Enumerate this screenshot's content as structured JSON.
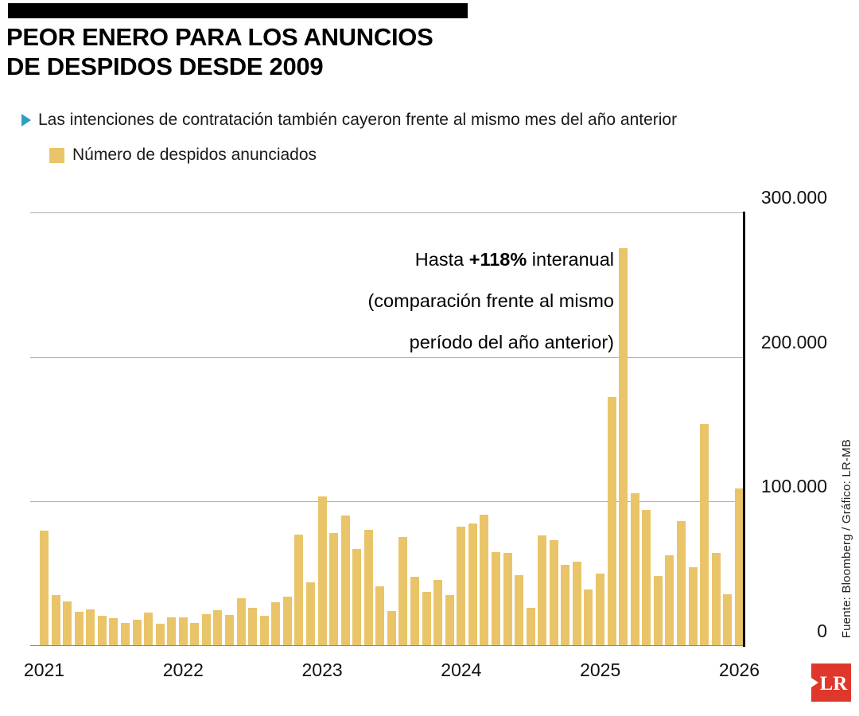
{
  "header": {
    "title_line1": "PEOR ENERO PARA LOS ANUNCIOS",
    "title_line2": "DE DESPIDOS DESDE 2009",
    "subtitle": "Las intenciones de contratación también cayeron frente al mismo mes del año anterior"
  },
  "legend": {
    "label": "Número de despidos anunciados",
    "color": "#e9c469"
  },
  "annotation": {
    "prefix": "Hasta ",
    "highlight": "+118%",
    "suffix": " interanual",
    "line2": "(comparación frente al mismo",
    "line3": "período del año anterior)"
  },
  "source": "Fuente: Bloomberg / Gráfico: LR-MB",
  "logo": {
    "text": "LR",
    "color": "#df372c"
  },
  "chart_data": {
    "type": "bar",
    "title": "Número de despidos anunciados",
    "xlabel": "",
    "ylabel": "",
    "ylim": [
      0,
      300000
    ],
    "grid": true,
    "bar_color": "#e9c469",
    "y_ticks": [
      "300.000",
      "200.000",
      "100.000",
      "0"
    ],
    "x_labels": [
      "2021",
      "2022",
      "2023",
      "2024",
      "2025",
      "2026"
    ],
    "x": [
      "2021-01",
      "2021-02",
      "2021-03",
      "2021-04",
      "2021-05",
      "2021-06",
      "2021-07",
      "2021-08",
      "2021-09",
      "2021-10",
      "2021-11",
      "2021-12",
      "2022-01",
      "2022-02",
      "2022-03",
      "2022-04",
      "2022-05",
      "2022-06",
      "2022-07",
      "2022-08",
      "2022-09",
      "2022-10",
      "2022-11",
      "2022-12",
      "2023-01",
      "2023-02",
      "2023-03",
      "2023-04",
      "2023-05",
      "2023-06",
      "2023-07",
      "2023-08",
      "2023-09",
      "2023-10",
      "2023-11",
      "2023-12",
      "2024-01",
      "2024-02",
      "2024-03",
      "2024-04",
      "2024-05",
      "2024-06",
      "2024-07",
      "2024-08",
      "2024-09",
      "2024-10",
      "2024-11",
      "2024-12",
      "2025-01",
      "2025-02",
      "2025-03",
      "2025-04",
      "2025-05",
      "2025-06",
      "2025-07",
      "2025-08",
      "2025-09",
      "2025-10",
      "2025-11",
      "2025-12",
      "2026-01"
    ],
    "values": [
      79500,
      34500,
      30600,
      22900,
      24600,
      20500,
      18900,
      15700,
      17900,
      22800,
      14900,
      19100,
      19100,
      15200,
      21400,
      24300,
      20700,
      32500,
      25800,
      20500,
      30000,
      33800,
      76800,
      43700,
      102900,
      77800,
      89700,
      67000,
      80100,
      40700,
      23700,
      75200,
      47500,
      36800,
      45500,
      34800,
      82300,
      84600,
      90300,
      64800,
      63800,
      48800,
      25900,
      75900,
      72800,
      55600,
      57700,
      38800,
      49800,
      172000,
      275200,
      105400,
      93800,
      48000,
      62100,
      86000,
      54100,
      153100,
      64100,
      35200,
      108600
    ]
  }
}
